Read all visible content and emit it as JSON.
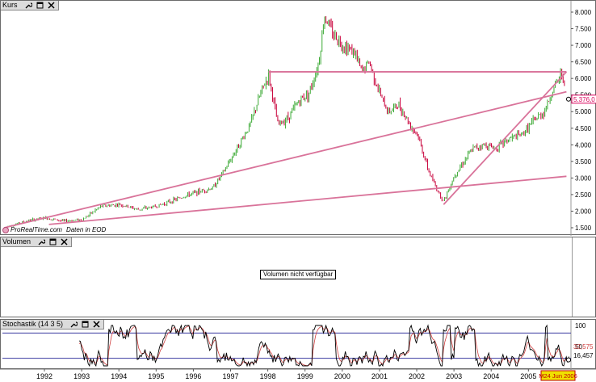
{
  "panels": {
    "kurs": {
      "title": "Kurs"
    },
    "volumen": {
      "title": "Volumen",
      "message": "Volumen nicht verfügbar"
    },
    "stoch": {
      "title": "Stochastik (14 3 5)"
    }
  },
  "watermark": {
    "brand": "ProRealTime.com",
    "source": "Daten in EOD"
  },
  "price_axis": {
    "ticks": [
      "8.000",
      "7.500",
      "7.000",
      "6.500",
      "6.000",
      "5.500",
      "5.000",
      "4.500",
      "4.000",
      "3.500",
      "3.000",
      "2.500",
      "2.000",
      "1.500"
    ],
    "current_label": "5.376,0",
    "current_color": "#d9005b"
  },
  "stoch_axis": {
    "ticks": [
      "100",
      "50"
    ],
    "value_labels": [
      "32,575",
      "16,457"
    ]
  },
  "date_axis": {
    "years": [
      "1992",
      "1993",
      "1994",
      "1995",
      "1996",
      "1997",
      "1998",
      "1999",
      "2000",
      "2001",
      "2002",
      "2003",
      "2004",
      "2005"
    ],
    "current_date": "M24 Jun 2006"
  },
  "colors": {
    "candle_up": "#39a832",
    "candle_down": "#c8003a",
    "trendline": "#d9739a",
    "stoch_ref": "#3838a0",
    "stoch_main": "#000000",
    "stoch_signal": "#d04040",
    "date_badge": "#f0e000"
  },
  "icons": [
    "wrench-icon",
    "maximize-icon",
    "close-icon"
  ],
  "chart_data": {
    "type": "candlestick",
    "xlabel": "",
    "ylabel": "",
    "ylim": [
      1300,
      8200
    ],
    "x": [
      1991.5,
      1992.0,
      1992.5,
      1993.0,
      1993.5,
      1994.0,
      1994.5,
      1995.0,
      1995.5,
      1996.0,
      1996.5,
      1997.0,
      1997.3,
      1997.6,
      1998.0,
      1998.3,
      1998.5,
      1998.75,
      1999.0,
      1999.3,
      1999.6,
      1999.85,
      2000.0,
      2000.2,
      2000.5,
      2000.8,
      2001.0,
      2001.2,
      2001.5,
      2001.7,
      2001.85,
      2002.0,
      2002.3,
      2002.5,
      2002.8,
      2003.0,
      2003.2,
      2003.5,
      2003.8,
      2004.0,
      2004.3,
      2004.6,
      2005.0,
      2005.3,
      2005.6,
      2005.9,
      2006.2,
      2006.4,
      2006.48
    ],
    "values": [
      1550,
      1700,
      1800,
      1700,
      1750,
      2150,
      2200,
      2050,
      2150,
      2350,
      2550,
      2700,
      3200,
      3800,
      4600,
      5600,
      6100,
      4600,
      4800,
      5300,
      5600,
      6500,
      7900,
      7400,
      7000,
      6800,
      6200,
      6500,
      5500,
      5000,
      5100,
      5200,
      4600,
      4300,
      3200,
      2700,
      2300,
      3100,
      3600,
      3900,
      4000,
      3900,
      4200,
      4300,
      4700,
      5000,
      5800,
      6200,
      5376
    ],
    "trendlines": [
      {
        "from": [
          1991.4,
          1500
        ],
        "to": [
          2006.5,
          5600
        ]
      },
      {
        "from": [
          1992.6,
          1600
        ],
        "to": [
          2006.5,
          3050
        ]
      },
      {
        "from": [
          1998.5,
          6200
        ],
        "to": [
          2006.5,
          6200
        ]
      },
      {
        "from": [
          2003.2,
          2200
        ],
        "to": [
          2006.5,
          6200
        ]
      }
    ]
  },
  "stoch_data": {
    "ylim": [
      0,
      100
    ],
    "ref_levels": [
      80,
      20
    ]
  }
}
